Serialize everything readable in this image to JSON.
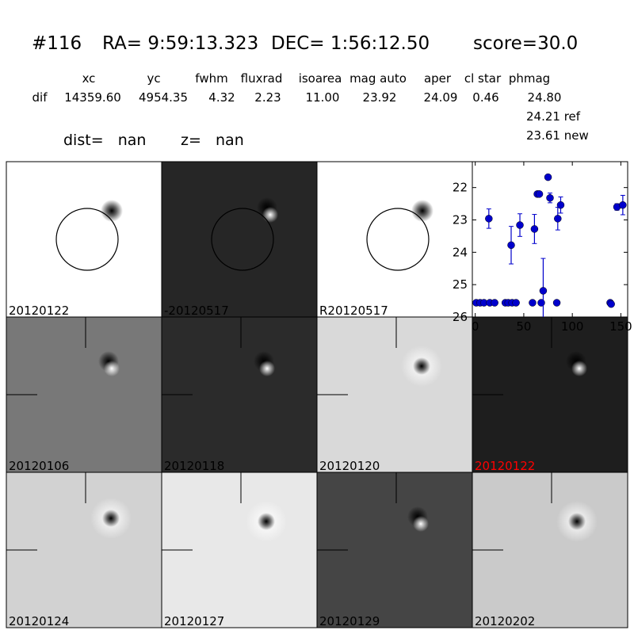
{
  "header": {
    "id": "#116",
    "ra": "RA= 9:59:13.323",
    "dec": "DEC= 1:56:12.50",
    "score": "score=30.0"
  },
  "table": {
    "columns": [
      "xc",
      "yc",
      "fwhm",
      "fluxrad",
      "isoarea",
      "mag auto",
      "aper",
      "cl star",
      "phmag"
    ],
    "row": [
      "dif",
      "14359.60",
      "4954.35",
      "4.32",
      "2.23",
      "11.00",
      "23.92",
      "24.09",
      "0.46",
      "24.80"
    ],
    "extra": [
      "24.21 ref",
      "23.61 new"
    ]
  },
  "dist": "dist=   nan",
  "z": "z=   nan",
  "panels": [
    {
      "label": "20120122"
    },
    {
      "label": "-20120517"
    },
    {
      "label": "R20120517"
    },
    {
      "label": "20120106"
    },
    {
      "label": "20120118"
    },
    {
      "label": "20120120"
    },
    {
      "label": "20120122"
    },
    {
      "label": "20120124"
    },
    {
      "label": "20120127"
    },
    {
      "label": "20120129"
    },
    {
      "label": "20120202"
    }
  ],
  "chart_data": {
    "type": "scatter",
    "color": "#0000cc",
    "x": [
      1,
      5,
      9,
      15,
      20,
      31,
      34,
      38,
      42,
      59,
      68,
      84,
      139,
      140,
      70,
      14,
      37,
      46,
      61,
      64,
      66,
      75,
      77,
      85,
      88,
      146,
      152
    ],
    "values": [
      25.56,
      25.56,
      25.56,
      25.56,
      25.56,
      25.56,
      25.56,
      25.56,
      25.56,
      25.56,
      25.56,
      25.56,
      25.56,
      25.6,
      25.19,
      22.96,
      23.78,
      23.16,
      23.28,
      22.2,
      22.2,
      21.68,
      22.32,
      22.96,
      22.54,
      22.6,
      22.54
    ],
    "errors": [
      0.05,
      0.05,
      0.05,
      0.05,
      0.05,
      0.05,
      0.05,
      0.05,
      0.05,
      0.05,
      0.05,
      0.05,
      0.05,
      0.05,
      1.0,
      0.3,
      0.58,
      0.35,
      0.45,
      0.07,
      0.07,
      0.07,
      0.15,
      0.35,
      0.25,
      0.1,
      0.3
    ],
    "xlim": [
      -3,
      157
    ],
    "ylim": [
      26,
      21.2
    ],
    "xticks": [
      0,
      50,
      100,
      150
    ],
    "yticks": [
      22,
      23,
      24,
      25,
      26
    ]
  }
}
